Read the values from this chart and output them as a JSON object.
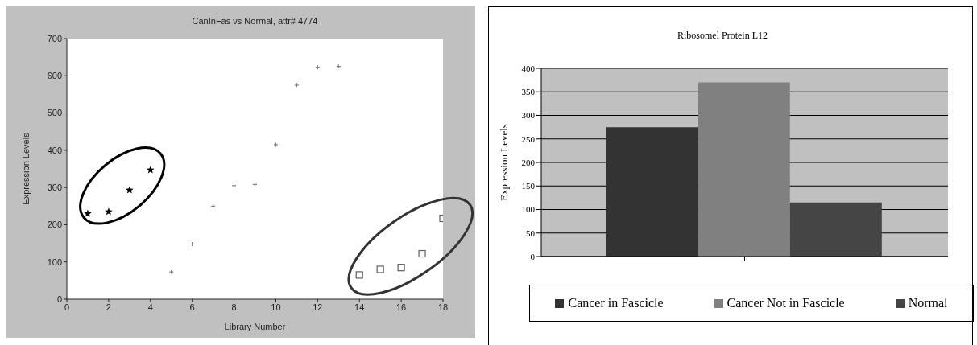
{
  "chart_data": [
    {
      "type": "scatter",
      "title": "CanInFas vs Normal, attr# 4774",
      "xlabel": "Library Number",
      "ylabel": "Expression Levels",
      "xlim": [
        0,
        18
      ],
      "xticks": [
        0,
        2,
        4,
        6,
        8,
        10,
        12,
        14,
        16,
        18
      ],
      "ylim": [
        0,
        700
      ],
      "yticks": [
        0,
        100,
        200,
        300,
        400,
        500,
        600,
        700
      ],
      "grid": false,
      "legend": false,
      "series": [
        {
          "color": "#000000",
          "marker": "star",
          "x": [
            1,
            2,
            3,
            4
          ],
          "values": [
            230,
            235,
            293,
            347
          ]
        },
        {
          "color": "#808080",
          "marker": "cross",
          "x": [
            5,
            6,
            7,
            8,
            9,
            10,
            11,
            12,
            13
          ],
          "values": [
            73,
            148,
            250,
            305,
            308,
            415,
            575,
            623,
            625
          ]
        },
        {
          "color": "#606060",
          "marker": "square",
          "x": [
            14,
            15,
            16,
            17,
            18
          ],
          "values": [
            65,
            80,
            85,
            122,
            217
          ]
        }
      ]
    },
    {
      "type": "bar",
      "title": "Ribosomel Protein L12",
      "ylabel": "Expression Levels",
      "categories": [
        null
      ],
      "ylim": [
        0,
        400
      ],
      "yticks": [
        0,
        50,
        100,
        150,
        200,
        250,
        300,
        350,
        400
      ],
      "grid": "y",
      "legend": "bottom",
      "series": [
        {
          "name": "Cancer in Fascicle",
          "color": "#333333",
          "values": [
            275
          ]
        },
        {
          "name": "Cancer Not in Fascicle",
          "color": "#808080",
          "values": [
            370
          ]
        },
        {
          "name": "Normal",
          "color": "#454545",
          "values": [
            115
          ]
        }
      ]
    }
  ]
}
